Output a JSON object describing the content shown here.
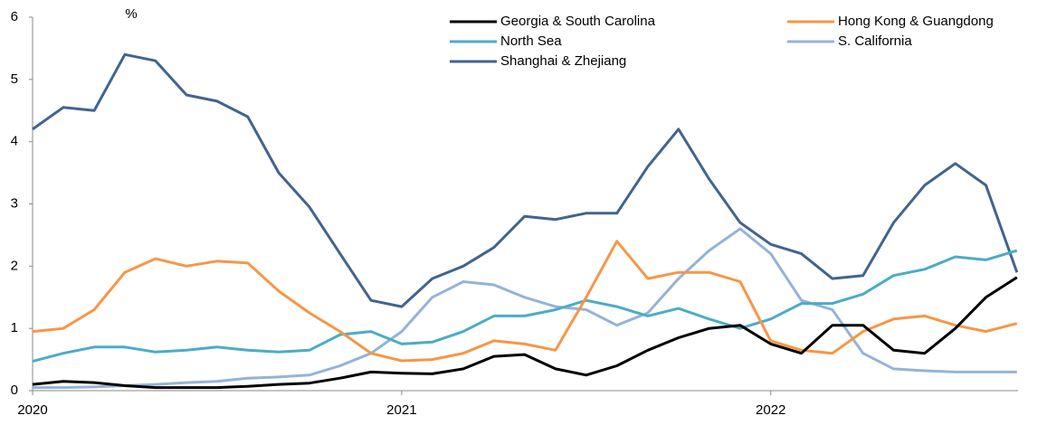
{
  "chart_data": {
    "type": "line",
    "ylabel": "%",
    "x": [
      2020,
      2020.083,
      2020.167,
      2020.25,
      2020.333,
      2020.417,
      2020.5,
      2020.583,
      2020.667,
      2020.75,
      2020.833,
      2020.917,
      2021,
      2021.083,
      2021.167,
      2021.25,
      2021.333,
      2021.417,
      2021.5,
      2021.583,
      2021.667,
      2021.75,
      2021.833,
      2021.917,
      2022,
      2022.083,
      2022.167,
      2022.25,
      2022.333,
      2022.417,
      2022.5,
      2022.583,
      2022.667
    ],
    "xlim": [
      2020,
      2022.67
    ],
    "xticks": [
      2020,
      2021,
      2022
    ],
    "ylim": [
      0,
      6
    ],
    "yticks": [
      0,
      1,
      2,
      3,
      4,
      5,
      6
    ],
    "legend": "upper right",
    "series": [
      {
        "name": "Georgia & South Carolina",
        "color": "#000000",
        "values": [
          0.1,
          0.15,
          0.13,
          0.08,
          0.05,
          0.05,
          0.05,
          0.07,
          0.1,
          0.12,
          0.2,
          0.3,
          0.28,
          0.27,
          0.35,
          0.55,
          0.58,
          0.35,
          0.25,
          0.4,
          0.65,
          0.85,
          1.0,
          1.05,
          0.75,
          0.6,
          1.05,
          1.05,
          0.65,
          0.6,
          1.0,
          1.5,
          1.82
        ]
      },
      {
        "name": "Hong Kong & Guangdong",
        "color": "#f79646",
        "values": [
          0.95,
          1.0,
          1.3,
          1.9,
          2.12,
          2.0,
          2.08,
          2.05,
          1.6,
          1.25,
          0.95,
          0.6,
          0.48,
          0.5,
          0.6,
          0.8,
          0.75,
          0.65,
          1.5,
          2.4,
          1.8,
          1.9,
          1.9,
          1.75,
          0.8,
          0.65,
          0.6,
          0.95,
          1.15,
          1.2,
          1.05,
          0.95,
          1.08
        ]
      },
      {
        "name": "North Sea",
        "color": "#4bacc6",
        "values": [
          0.47,
          0.6,
          0.7,
          0.7,
          0.62,
          0.65,
          0.7,
          0.65,
          0.62,
          0.65,
          0.9,
          0.95,
          0.75,
          0.78,
          0.95,
          1.2,
          1.2,
          1.3,
          1.45,
          1.35,
          1.2,
          1.32,
          1.15,
          1.0,
          1.15,
          1.4,
          1.4,
          1.55,
          1.85,
          1.95,
          2.15,
          2.1,
          2.25
        ]
      },
      {
        "name": "S. California",
        "color": "#95b3d7",
        "values": [
          0.05,
          0.05,
          0.06,
          0.08,
          0.1,
          0.13,
          0.15,
          0.2,
          0.22,
          0.25,
          0.4,
          0.6,
          0.95,
          1.5,
          1.75,
          1.7,
          1.5,
          1.35,
          1.3,
          1.05,
          1.25,
          1.8,
          2.25,
          2.6,
          2.2,
          1.45,
          1.3,
          0.6,
          0.35,
          0.32,
          0.3,
          0.3,
          0.3
        ]
      },
      {
        "name": "Shanghai & Zhejiang",
        "color": "#41648f",
        "values": [
          4.2,
          4.55,
          4.5,
          5.4,
          5.3,
          4.75,
          4.65,
          4.4,
          3.5,
          2.95,
          2.2,
          1.45,
          1.35,
          1.8,
          2.0,
          2.3,
          2.8,
          2.75,
          2.85,
          2.85,
          3.6,
          4.2,
          3.4,
          2.7,
          2.35,
          2.2,
          1.8,
          1.85,
          2.7,
          3.3,
          3.65,
          3.3,
          1.9
        ]
      }
    ]
  }
}
